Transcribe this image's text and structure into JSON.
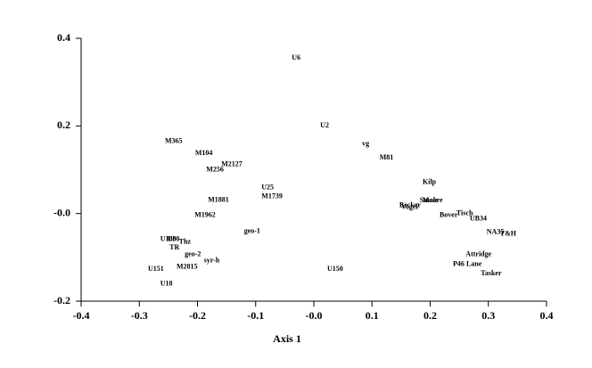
{
  "chart_data": {
    "type": "scatter",
    "x_label": "Axis 1",
    "labels": [
      "U6",
      "U2",
      "vg",
      "M81",
      "M365",
      "M104",
      "M2127",
      "M256",
      "Kilp",
      "U25",
      "M1739",
      "M1881",
      "Smale",
      "Moore",
      "Becker",
      "Vogel",
      "M1962",
      "Bover",
      "Tisch",
      "UB34",
      "geo-1",
      "NA35",
      "T&H",
      "U180",
      "U30",
      "Thz",
      "TR",
      "geo-2",
      "Attridge",
      "syr-h",
      "P46",
      "Lane",
      "U151",
      "M2815",
      "U150",
      "Tasker",
      "U18"
    ],
    "x": [
      -0.038,
      0.011,
      0.083,
      0.113,
      -0.256,
      -0.204,
      -0.159,
      -0.185,
      0.187,
      -0.09,
      -0.09,
      -0.182,
      0.182,
      0.187,
      0.147,
      0.15,
      -0.205,
      0.216,
      0.245,
      0.268,
      -0.12,
      0.297,
      0.32,
      -0.264,
      -0.252,
      -0.232,
      -0.248,
      -0.222,
      0.261,
      -0.189,
      0.239,
      0.262,
      -0.285,
      -0.236,
      0.023,
      0.287,
      -0.264
    ],
    "values": [
      0.355,
      0.2,
      0.159,
      0.127,
      0.165,
      0.137,
      0.112,
      0.1,
      0.071,
      0.059,
      0.039,
      0.031,
      0.029,
      0.029,
      0.018,
      0.014,
      -0.004,
      -0.004,
      0,
      -0.012,
      -0.041,
      -0.043,
      -0.047,
      -0.059,
      -0.059,
      -0.065,
      -0.078,
      -0.094,
      -0.094,
      -0.108,
      -0.116,
      -0.116,
      -0.127,
      -0.122,
      -0.127,
      -0.137,
      -0.161
    ],
    "xlim": [
      -0.4,
      0.4
    ],
    "xticks": [
      -0.4,
      -0.3,
      -0.2,
      -0.1,
      {
        "value": 0,
        "label": "-0.0"
      },
      0.1,
      0.2,
      0.3,
      0.4
    ],
    "ylim": [
      -0.2,
      0.4
    ],
    "yticks": [
      -0.2,
      {
        "value": 0,
        "label": "-0.0"
      },
      0.2,
      0.4
    ]
  }
}
